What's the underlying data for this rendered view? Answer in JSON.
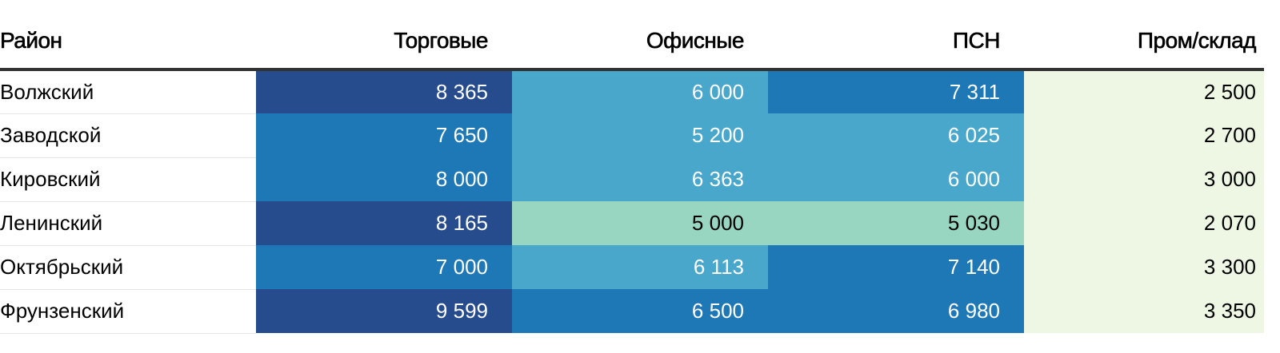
{
  "chart_data": {
    "type": "table",
    "columns": [
      "Район",
      "Торговые",
      "Офисные",
      "ПСН",
      "Пром/склад"
    ],
    "rows": [
      {
        "name": "Волжский",
        "values": [
          8365,
          6000,
          7311,
          2500
        ],
        "display": [
          "8 365",
          "6 000",
          "7 311",
          "2 500"
        ]
      },
      {
        "name": "Заводской",
        "values": [
          7650,
          5200,
          6025,
          2700
        ],
        "display": [
          "7 650",
          "5 200",
          "6 025",
          "2 700"
        ]
      },
      {
        "name": "Кировский",
        "values": [
          8000,
          6363,
          6000,
          3000
        ],
        "display": [
          "8 000",
          "6 363",
          "6 000",
          "3 000"
        ]
      },
      {
        "name": "Ленинский",
        "values": [
          8165,
          5000,
          5030,
          2070
        ],
        "display": [
          "8 165",
          "5 000",
          "5 030",
          "2 070"
        ]
      },
      {
        "name": "Октябрьский",
        "values": [
          7000,
          6113,
          7140,
          3300
        ],
        "display": [
          "7 000",
          "6 113",
          "7 140",
          "3 300"
        ]
      },
      {
        "name": "Фрунзенский",
        "values": [
          9599,
          6500,
          6980,
          3350
        ],
        "display": [
          "9 599",
          "6 500",
          "6 980",
          "3 350"
        ]
      }
    ],
    "color_scale": {
      "thresholds": [
        3500,
        5100,
        6500,
        8100
      ],
      "colors": [
        "#eef7e4",
        "#99d6c1",
        "#4aa7cc",
        "#1f78b6",
        "#264c8d"
      ],
      "text_colors": [
        "#000000",
        "#000000",
        "#ffffff",
        "#ffffff",
        "#ffffff"
      ]
    }
  }
}
